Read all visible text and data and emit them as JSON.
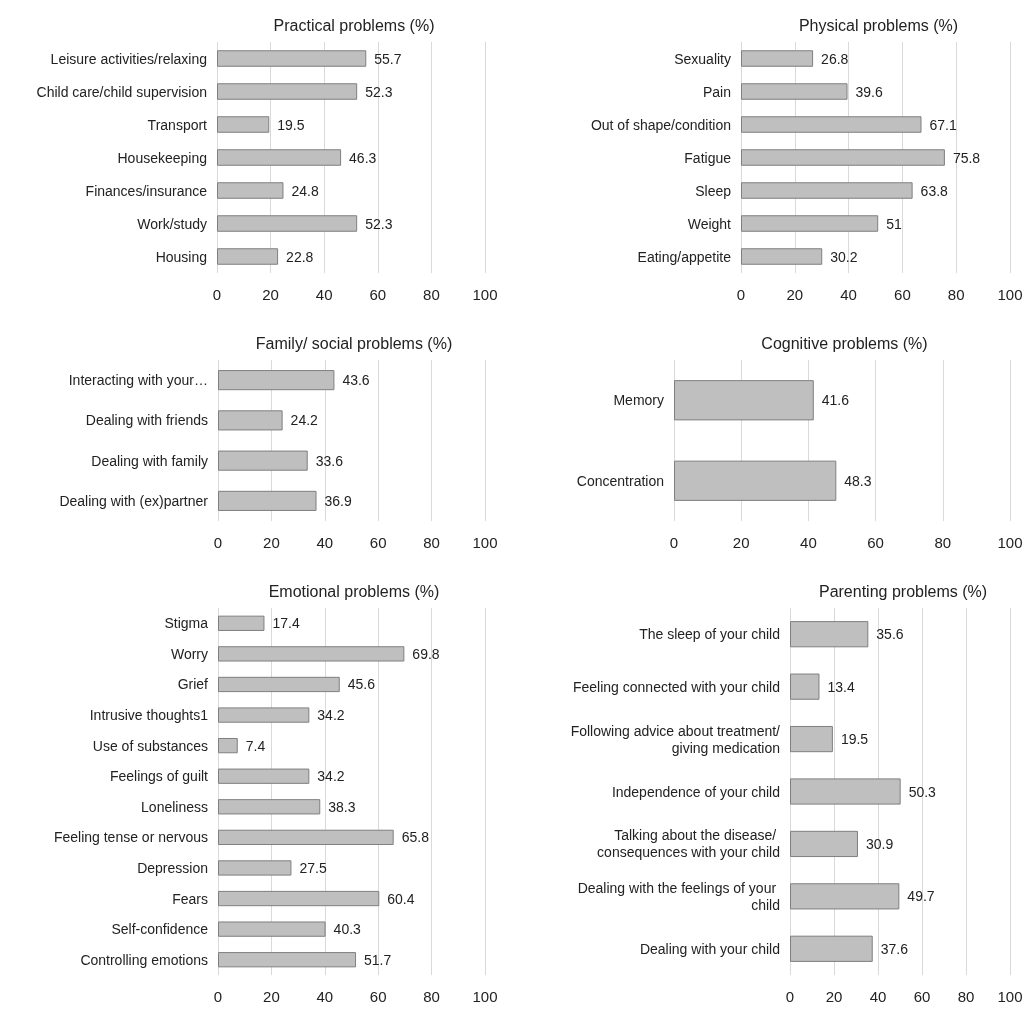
{
  "chart_data": [
    {
      "type": "bar",
      "orientation": "horizontal",
      "title": "Practical problems (%)",
      "categories": [
        "Leisure activities/relaxing",
        "Child care/child supervision",
        "Transport",
        "Housekeeping",
        "Finances/insurance",
        "Work/study",
        "Housing"
      ],
      "values": [
        55.7,
        52.3,
        19.5,
        46.3,
        24.8,
        52.3,
        22.8
      ],
      "color": "#bfbfbf",
      "xlim": [
        0,
        100
      ],
      "xticks": [
        0,
        20,
        40,
        60,
        80,
        100
      ],
      "grid": "x",
      "data_labels": true
    },
    {
      "type": "bar",
      "orientation": "horizontal",
      "title": "Physical problems (%)",
      "categories": [
        "Sexuality",
        "Pain",
        "Out of shape/condition",
        "Fatigue",
        "Sleep",
        "Weight",
        "Eating/appetite"
      ],
      "values": [
        26.8,
        39.6,
        67.1,
        75.8,
        63.8,
        51,
        30.2
      ],
      "color": "#bfbfbf",
      "xlim": [
        0,
        100
      ],
      "xticks": [
        0,
        20,
        40,
        60,
        80,
        100
      ],
      "grid": "x",
      "data_labels": true
    },
    {
      "type": "bar",
      "orientation": "horizontal",
      "title": "Family/ social problems (%)",
      "categories": [
        "Interacting with your…",
        "Dealing with friends",
        "Dealing with family",
        "Dealing with (ex)partner"
      ],
      "values": [
        43.6,
        24.2,
        33.6,
        36.9
      ],
      "color": "#bfbfbf",
      "xlim": [
        0,
        100
      ],
      "xticks": [
        0,
        20,
        40,
        60,
        80,
        100
      ],
      "grid": "x",
      "data_labels": true
    },
    {
      "type": "bar",
      "orientation": "horizontal",
      "title": "Cognitive problems (%)",
      "categories": [
        "Memory",
        "Concentration"
      ],
      "values": [
        41.6,
        48.3
      ],
      "color": "#bfbfbf",
      "xlim": [
        0,
        100
      ],
      "xticks": [
        0,
        20,
        40,
        60,
        80,
        100
      ],
      "grid": "x",
      "data_labels": true
    },
    {
      "type": "bar",
      "orientation": "horizontal",
      "title": "Emotional problems (%)",
      "categories": [
        "Stigma",
        "Worry",
        "Grief",
        "Intrusive thoughts1",
        "Use of substances",
        "Feelings of guilt",
        "Loneliness",
        "Feeling tense or nervous",
        "Depression",
        "Fears",
        "Self-confidence",
        "Controlling emotions"
      ],
      "values": [
        17.4,
        69.8,
        45.6,
        34.2,
        7.4,
        34.2,
        38.3,
        65.8,
        27.5,
        60.4,
        40.3,
        51.7
      ],
      "color": "#bfbfbf",
      "xlim": [
        0,
        100
      ],
      "xticks": [
        0,
        20,
        40,
        60,
        80,
        100
      ],
      "grid": "x",
      "data_labels": true
    },
    {
      "type": "bar",
      "orientation": "horizontal",
      "title": "Parenting problems (%)",
      "categories": [
        "The sleep of your child",
        "Feeling connected with your child",
        "Following advice about treatment/giving medication",
        "Independence of your child",
        "Talking about the disease/ consequences with your child",
        "Dealing with the feelings of your child",
        "Dealing with your child"
      ],
      "values": [
        35.6,
        13.4,
        19.5,
        50.3,
        30.9,
        49.7,
        37.6
      ],
      "color": "#bfbfbf",
      "xlim": [
        0,
        100
      ],
      "xticks": [
        0,
        20,
        40,
        60,
        80,
        100
      ],
      "grid": "x",
      "data_labels": true
    }
  ]
}
